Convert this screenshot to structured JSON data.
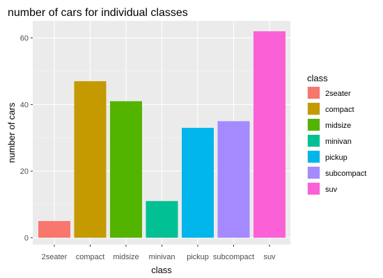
{
  "chart_data": {
    "type": "bar",
    "title": "number of cars for individual classes",
    "xlabel": "class",
    "ylabel": "number of cars",
    "categories": [
      "2seater",
      "compact",
      "midsize",
      "minivan",
      "pickup",
      "subcompact",
      "suv"
    ],
    "values": [
      5,
      47,
      41,
      11,
      33,
      35,
      62
    ],
    "colors": [
      "#F8766D",
      "#C49A00",
      "#53B400",
      "#00C094",
      "#00B6EB",
      "#A58AFF",
      "#FB61D7"
    ],
    "y_ticks": [
      0,
      20,
      40,
      60
    ],
    "ylim": [
      0,
      62
    ],
    "grid": true,
    "panel_background": "#EBEBEB",
    "legend": {
      "title": "class",
      "position": "right",
      "items": [
        "2seater",
        "compact",
        "midsize",
        "minivan",
        "pickup",
        "subcompact",
        "suv"
      ]
    }
  }
}
